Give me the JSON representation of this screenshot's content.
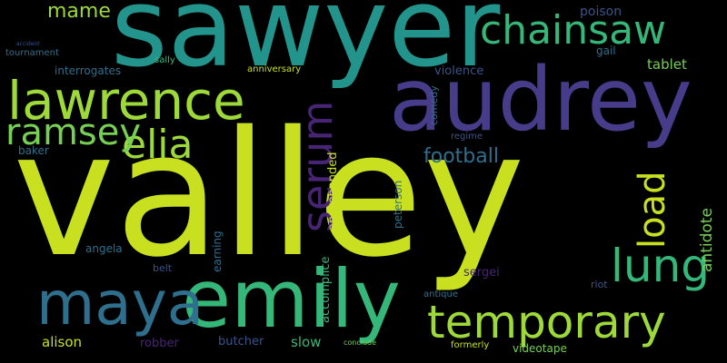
{
  "background": "#000000",
  "words": {
    "valley": "valley",
    "sawyer": "sawyer",
    "audrey": "audrey",
    "lawrence": "lawrence",
    "emily": "emily",
    "maya": "maya",
    "temporary": "temporary",
    "chainsaw": "chainsaw",
    "elia": "elia",
    "ramsey": "ramsey",
    "serum": "serum",
    "lung": "lung",
    "load": "load",
    "football": "football",
    "mame": "mame",
    "poison": "poison",
    "tablet": "tablet",
    "antidote": "antidote",
    "violence": "violence",
    "alison": "alison",
    "robber": "robber",
    "butcher": "butcher",
    "slow": "slow",
    "accomplice": "accomplice",
    "apprehended": "apprehended",
    "peterson": "peterson",
    "earning": "earning",
    "belt": "belt",
    "angela": "angela",
    "baker": "baker",
    "interrogates": "interrogates",
    "tournament": "tournament",
    "anniversary": "anniversary",
    "sergei": "sergei",
    "riot": "riot",
    "antique": "antique",
    "videotape": "videotape",
    "formerly": "formerly",
    "conclude": "conclude",
    "regime": "regime",
    "comedy": "comedy",
    "gail": "gail",
    "sally": "sally",
    "accident": "accident"
  },
  "colors": {
    "yellow_green": "#c8e020",
    "teal": "#23948c",
    "indigo": "#463c8a",
    "green": "#9ed93a",
    "mid_green": "#35b779",
    "lime": "#75d054",
    "slate": "#2e6f8e",
    "purple": "#482475",
    "blue": "#3b528b"
  }
}
